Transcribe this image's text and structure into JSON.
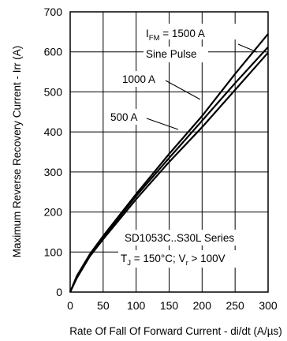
{
  "chart_data": {
    "type": "line",
    "xlabel": "Rate Of Fall Of Forward Current - di/dt (A/µs)",
    "ylabel": "Maximum Reverse Recovery Current - Irr (A)",
    "xlim": [
      0,
      300
    ],
    "ylim": [
      0,
      700
    ],
    "x_ticks": [
      0,
      50,
      100,
      150,
      200,
      250,
      300
    ],
    "y_ticks": [
      0,
      100,
      200,
      300,
      400,
      500,
      600,
      700
    ],
    "grid": true,
    "series": [
      {
        "name": "I_FM = 1500 A",
        "x": [
          0,
          10,
          30,
          50,
          100,
          150,
          200,
          250,
          300
        ],
        "y": [
          0,
          40,
          95,
          140,
          245,
          345,
          440,
          545,
          645
        ]
      },
      {
        "name": "1000 A",
        "x": [
          0,
          10,
          30,
          50,
          100,
          150,
          200,
          250,
          300
        ],
        "y": [
          0,
          38,
          93,
          137,
          240,
          335,
          428,
          522,
          612
        ]
      },
      {
        "name": "500 A",
        "x": [
          0,
          10,
          30,
          50,
          100,
          150,
          200,
          250,
          300
        ],
        "y": [
          0,
          35,
          90,
          132,
          232,
          325,
          412,
          505,
          598
        ]
      }
    ],
    "annotations": {
      "ifm_main": "I",
      "ifm_sub": "FM",
      "ifm_value": " = 1500 A",
      "sine_pulse": "Sine Pulse",
      "label_1000": "1000 A",
      "label_500": "500 A",
      "series_name": "SD1053C..S30L Series",
      "tj_main": "T",
      "tj_sub": "J",
      "tj_rest": " = 150°C; V",
      "vr_sub": "r",
      "vr_rest": " > 100V"
    }
  }
}
